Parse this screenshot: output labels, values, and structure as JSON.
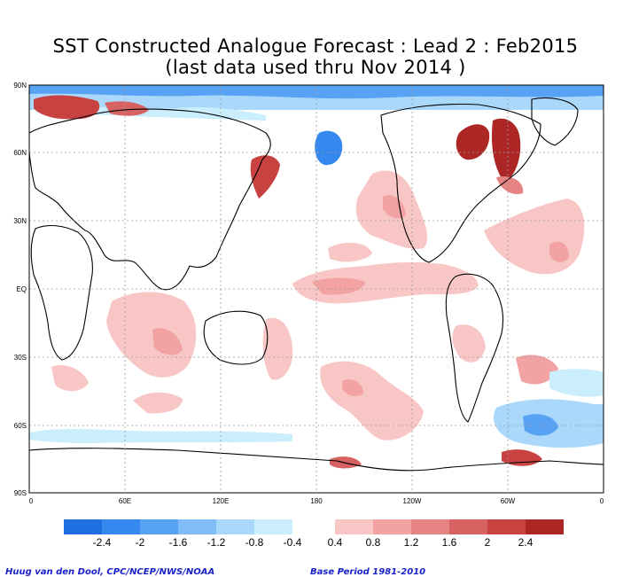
{
  "title": {
    "line1": "SST Constructed Analogue Forecast : Lead 2 : Feb2015",
    "line2": "(last data used thru Nov 2014 )"
  },
  "map": {
    "lat_labels": [
      "90N",
      "60N",
      "30N",
      "EQ",
      "30S",
      "60S",
      "90S"
    ],
    "lon_labels": [
      "0",
      "60E",
      "120E",
      "180",
      "120W",
      "60W",
      "0"
    ]
  },
  "colorbar": {
    "negative": {
      "colors": [
        "#1f6fe0",
        "#3488ee",
        "#58a2f4",
        "#80bdf8",
        "#a9d8fb",
        "#cbeefc"
      ],
      "labels": [
        "-2.4",
        "-2",
        "-1.6",
        "-1.2",
        "-0.8",
        "-0.4"
      ]
    },
    "positive": {
      "colors": [
        "#f9c6c6",
        "#f2a2a2",
        "#e68383",
        "#d86262",
        "#c84242",
        "#ad2626"
      ],
      "labels": [
        "0.4",
        "0.8",
        "1.2",
        "1.6",
        "2",
        "2.4"
      ]
    }
  },
  "footer": {
    "credit": "Huug van den Dool, CPC/NCEP/NWS/NOAA",
    "period": "Base Period 1981-2010"
  }
}
